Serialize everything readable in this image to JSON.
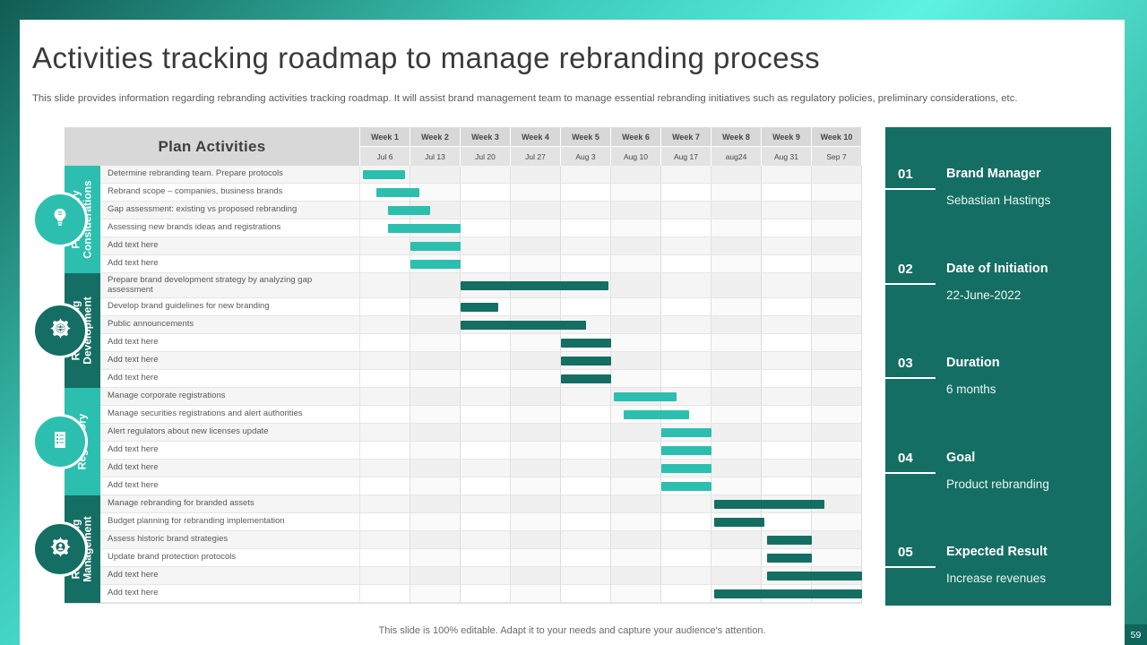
{
  "slide": {
    "title": "Activities tracking roadmap to manage rebranding process",
    "subtitle": "This slide provides information regarding rebranding activities tracking roadmap. It will assist brand management team to manage essential rebranding initiatives such as regulatory policies, preliminary considerations, etc.",
    "footer_note": "This slide is 100% editable. Adapt it to your needs and capture your audience's attention.",
    "page_number": "59"
  },
  "colors": {
    "teal_light": "#2CBFAF",
    "teal_dark": "#156E63",
    "sidebar_bg": "#156E63",
    "header_bg": "#D8D8D8",
    "date_bg": "#E3E3E3"
  },
  "chart_data": {
    "type": "table",
    "title": "Plan Activities",
    "week_labels": [
      "Week 1",
      "Week 2",
      "Week 3",
      "Week 4",
      "Week 5",
      "Week 6",
      "Week 7",
      "Week 8",
      "Week 9",
      "Week 10"
    ],
    "date_labels": [
      "Jul 6",
      "Jul 13",
      "Jul 20",
      "Jul 27",
      "Aug 3",
      "Aug 10",
      "Aug 17",
      "aug24",
      "Aug 31",
      "Sep 7"
    ],
    "groups": [
      {
        "name": "Preliminary Considerations",
        "icon": "idea-icon",
        "tone": "light",
        "tasks": [
          {
            "label": "Determine rebranding team. Prepare protocols",
            "start": 0.05,
            "duration": 0.85
          },
          {
            "label": "Rebrand scope – companies, business brands",
            "start": 0.33,
            "duration": 0.85
          },
          {
            "label": "Gap assessment: existing vs proposed rebranding",
            "start": 0.55,
            "duration": 0.85
          },
          {
            "label": "Assessing new brands ideas and registrations",
            "start": 0.55,
            "duration": 1.45
          },
          {
            "label": "Add text here",
            "start": 1.0,
            "duration": 1.0
          },
          {
            "label": "Add text here",
            "start": 1.0,
            "duration": 1.0
          }
        ]
      },
      {
        "name": "Rebranding Development",
        "icon": "gear-globe-icon",
        "tone": "dark",
        "tasks": [
          {
            "label": "Prepare brand development strategy by analyzing gap assessment",
            "start": 2.0,
            "duration": 2.95,
            "tall": true
          },
          {
            "label": "Develop brand guidelines for new branding",
            "start": 2.0,
            "duration": 0.75
          },
          {
            "label": "Public announcements",
            "start": 2.0,
            "duration": 2.5
          },
          {
            "label": "Add text here",
            "start": 4.0,
            "duration": 1.0
          },
          {
            "label": "Add text here",
            "start": 4.0,
            "duration": 1.0
          },
          {
            "label": "Add text here",
            "start": 4.0,
            "duration": 1.0
          }
        ]
      },
      {
        "name": "Regulatory",
        "icon": "checklist-icon",
        "tone": "light",
        "tasks": [
          {
            "label": "Manage corporate registrations",
            "start": 5.05,
            "duration": 1.25
          },
          {
            "label": "Manage securities registrations and alert authorities",
            "start": 5.25,
            "duration": 1.3
          },
          {
            "label": "Alert regulators about new licenses update",
            "start": 6.0,
            "duration": 1.0
          },
          {
            "label": "Add text here",
            "start": 6.0,
            "duration": 1.0
          },
          {
            "label": "Add text here",
            "start": 6.0,
            "duration": 1.0
          },
          {
            "label": "Add text here",
            "start": 6.0,
            "duration": 1.0
          }
        ]
      },
      {
        "name": "Rebranding Management",
        "icon": "gear-person-icon",
        "tone": "dark",
        "tasks": [
          {
            "label": "Manage rebranding for branded assets",
            "start": 7.05,
            "duration": 2.2
          },
          {
            "label": "Budget planning for rebranding implementation",
            "start": 7.05,
            "duration": 1.0
          },
          {
            "label": "Assess historic brand strategies",
            "start": 8.1,
            "duration": 0.9
          },
          {
            "label": "Update brand protection protocols",
            "start": 8.1,
            "duration": 0.9
          },
          {
            "label": "Add text here",
            "start": 8.1,
            "duration": 1.9
          },
          {
            "label": "Add text here",
            "start": 7.05,
            "duration": 2.95
          }
        ]
      }
    ]
  },
  "sidebar": {
    "items": [
      {
        "number": "01",
        "title": "Brand Manager",
        "value": "Sebastian Hastings"
      },
      {
        "number": "02",
        "title": "Date of Initiation",
        "value": "22-June-2022"
      },
      {
        "number": "03",
        "title": "Duration",
        "value": "6 months"
      },
      {
        "number": "04",
        "title": "Goal",
        "value": "Product rebranding"
      },
      {
        "number": "05",
        "title": "Expected Result",
        "value": "Increase revenues"
      }
    ]
  }
}
